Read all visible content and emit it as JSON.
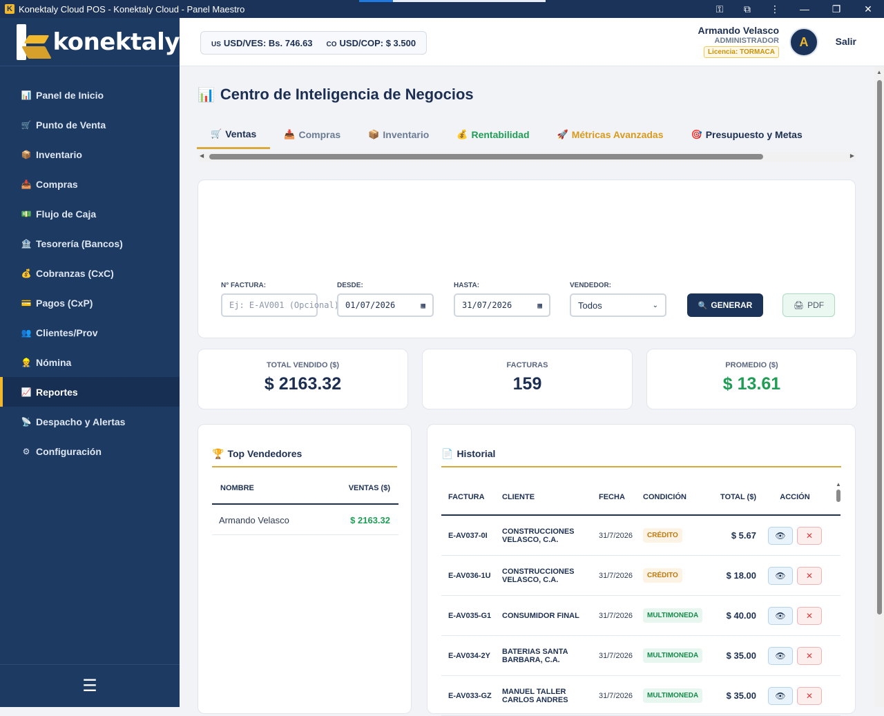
{
  "window": {
    "title": "Konektaly Cloud POS - Konektaly Cloud - Panel Maestro",
    "app_icon": "K",
    "progress": 0.18
  },
  "sidebar": {
    "brand": "konektaly",
    "items": [
      {
        "label": "Panel de Inicio",
        "icon": "📊",
        "active": false
      },
      {
        "label": "Punto de Venta",
        "icon": "🛒",
        "active": false
      },
      {
        "label": "Inventario",
        "icon": "📦",
        "active": false
      },
      {
        "label": "Compras",
        "icon": "📥",
        "active": false
      },
      {
        "label": "Flujo de Caja",
        "icon": "💵",
        "active": false
      },
      {
        "label": "Tesorería (Bancos)",
        "icon": "🏦",
        "active": false
      },
      {
        "label": "Cobranzas (CxC)",
        "icon": "💰",
        "active": false
      },
      {
        "label": "Pagos (CxP)",
        "icon": "💳",
        "active": false
      },
      {
        "label": "Clientes/Prov",
        "icon": "👥",
        "active": false
      },
      {
        "label": "Nómina",
        "icon": "👷",
        "active": false
      },
      {
        "label": "Reportes",
        "icon": "📈",
        "active": true
      },
      {
        "label": "Despacho y Alertas",
        "icon": "📡",
        "active": false
      },
      {
        "label": "Configuración",
        "icon": "⚙",
        "active": false
      }
    ],
    "menu_toggle": "☰"
  },
  "header": {
    "rates": [
      {
        "code": "US",
        "text": "USD/VES: Bs. 746.63"
      },
      {
        "code": "CO",
        "text": "USD/COP: $ 3.500"
      }
    ],
    "user_name": "Armando Velasco",
    "user_role": "ADMINISTRADOR",
    "license": "Licencia: TORMACA",
    "avatar_initial": "A",
    "logout": "Salir"
  },
  "page": {
    "title": "Centro de Inteligencia de Negocios",
    "title_icon": "📊",
    "tabs": [
      {
        "label": "Ventas",
        "icon": "🛒",
        "style": "active"
      },
      {
        "label": "Compras",
        "icon": "📥",
        "style": "muted"
      },
      {
        "label": "Inventario",
        "icon": "📦",
        "style": "muted"
      },
      {
        "label": "Rentabilidad",
        "icon": "💰",
        "style": "green"
      },
      {
        "label": "Métricas Avanzadas",
        "icon": "🚀",
        "style": "orange"
      },
      {
        "label": "Presupuesto y Metas",
        "icon": "🎯",
        "style": "dark"
      }
    ]
  },
  "filters": {
    "invoice_label": "N° FACTURA:",
    "invoice_placeholder": "Ej: E-AV001 (Opcional)",
    "from_label": "DESDE:",
    "from_value": "01/07/2026",
    "to_label": "HASTA:",
    "to_value": "31/07/2026",
    "seller_label": "VENDEDOR:",
    "seller_value": "Todos",
    "generate": "GENERAR",
    "pdf": "PDF"
  },
  "stats": [
    {
      "label": "TOTAL VENDIDO ($)",
      "value": "$ 2163.32",
      "green": false
    },
    {
      "label": "FACTURAS",
      "value": "159",
      "green": false
    },
    {
      "label": "PROMEDIO ($)",
      "value": "$ 13.61",
      "green": true
    }
  ],
  "top_sellers": {
    "title": "Top Vendedores",
    "icon": "🏆",
    "headers": [
      "NOMBRE",
      "VENTAS ($)"
    ],
    "rows": [
      {
        "name": "Armando Velasco",
        "sales": "$ 2163.32"
      }
    ]
  },
  "history": {
    "title": "Historial",
    "icon": "📄",
    "headers": [
      "FACTURA",
      "CLIENTE",
      "FECHA",
      "CONDICIÓN",
      "TOTAL ($)",
      "ACCIÓN"
    ],
    "rows": [
      {
        "invoice": "E-AV037-0I",
        "client": "CONSTRUCCIONES VELASCO, C.A.",
        "date": "31/7/2026",
        "condition": "CRÉDITO",
        "cond_type": "credito",
        "total": "$ 5.67"
      },
      {
        "invoice": "E-AV036-1U",
        "client": "CONSTRUCCIONES VELASCO, C.A.",
        "date": "31/7/2026",
        "condition": "CRÉDITO",
        "cond_type": "credito",
        "total": "$ 18.00"
      },
      {
        "invoice": "E-AV035-G1",
        "client": "CONSUMIDOR FINAL",
        "date": "31/7/2026",
        "condition": "MULTIMONEDA",
        "cond_type": "multi",
        "total": "$ 40.00"
      },
      {
        "invoice": "E-AV034-2Y",
        "client": "BATERIAS SANTA BARBARA, C.A.",
        "date": "31/7/2026",
        "condition": "MULTIMONEDA",
        "cond_type": "multi",
        "total": "$ 35.00"
      },
      {
        "invoice": "E-AV033-GZ",
        "client": "MANUEL TALLER CARLOS ANDRES",
        "date": "31/7/2026",
        "condition": "MULTIMONEDA",
        "cond_type": "multi",
        "total": "$ 35.00"
      }
    ]
  }
}
